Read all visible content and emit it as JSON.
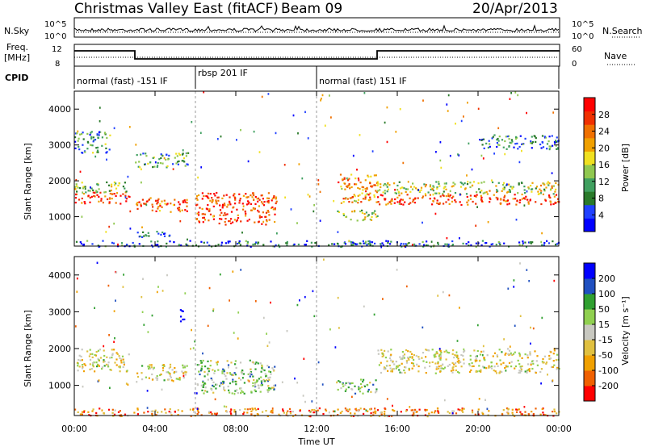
{
  "header": {
    "title": "Christmas Valley East (fitACF)",
    "beam": "Beam 09",
    "date": "20/Apr/2013"
  },
  "strips": {
    "nsky_label": "N.Sky",
    "nsearch_label": "N.Search",
    "noise_ticks": [
      "10^5",
      "10^0"
    ],
    "freq_label_1": "Freq.",
    "freq_label_2": "[MHz]",
    "freq_ticks": [
      "12",
      "8"
    ],
    "nave_label": "Nave",
    "nave_ticks": [
      "60",
      "0"
    ],
    "cpid_label": "CPID",
    "cpid_segments": [
      {
        "label": "normal (fast) -151 IF",
        "start_hour": 0,
        "end_hour": 6
      },
      {
        "label": "rbsp 201 IF",
        "start_hour": 6,
        "end_hour": 12
      },
      {
        "label": "normal (fast) 151 IF",
        "start_hour": 12,
        "end_hour": 24
      }
    ]
  },
  "chart_data": [
    {
      "type": "heatmap",
      "name": "power",
      "ylabel": "Slant Range [km]",
      "yticks": [
        1000,
        2000,
        3000,
        4000
      ],
      "ylim": [
        180,
        4500
      ],
      "xlim": [
        0,
        24
      ],
      "colorbar": {
        "label": "Power [dB]",
        "ticks": [
          "4",
          "8",
          "12",
          "16",
          "20",
          "24",
          "28"
        ],
        "colors": [
          "#0000ff",
          "#2040ff",
          "#2a7a2a",
          "#40a060",
          "#90c850",
          "#f0e020",
          "#f0a000",
          "#f07000",
          "#f03000",
          "#ff0000"
        ]
      },
      "scatter_bands": [
        {
          "t0": 0.0,
          "t1": 2.7,
          "r0": 1380,
          "r1": 1700,
          "level": 0.85
        },
        {
          "t0": 0.0,
          "t1": 2.7,
          "r0": 1700,
          "r1": 2000,
          "level": 0.45
        },
        {
          "t0": 0.0,
          "t1": 1.8,
          "r0": 2800,
          "r1": 3400,
          "level": 0.3
        },
        {
          "t0": 3.0,
          "t1": 5.6,
          "r0": 1150,
          "r1": 1550,
          "level": 0.8
        },
        {
          "t0": 3.0,
          "t1": 5.6,
          "r0": 2400,
          "r1": 2800,
          "level": 0.35
        },
        {
          "t0": 3.0,
          "t1": 5.0,
          "r0": 450,
          "r1": 620,
          "level": 0.25
        },
        {
          "t0": 6.0,
          "t1": 10.0,
          "r0": 800,
          "r1": 1700,
          "level": 0.85
        },
        {
          "t0": 13.0,
          "t1": 15.0,
          "r0": 1400,
          "r1": 2200,
          "level": 0.7
        },
        {
          "t0": 13.0,
          "t1": 15.0,
          "r0": 900,
          "r1": 1200,
          "level": 0.45
        },
        {
          "t0": 15.0,
          "t1": 24.0,
          "r0": 1350,
          "r1": 1650,
          "level": 0.85
        },
        {
          "t0": 15.0,
          "t1": 24.0,
          "r0": 1650,
          "r1": 2000,
          "level": 0.5
        },
        {
          "t0": 20.0,
          "t1": 24.0,
          "r0": 2900,
          "r1": 3300,
          "level": 0.25
        },
        {
          "t0": 0.0,
          "t1": 24.0,
          "r0": 180,
          "r1": 350,
          "level": 0.2
        }
      ]
    },
    {
      "type": "heatmap",
      "name": "velocity",
      "ylabel": "Slant Range [km]",
      "yticks": [
        1000,
        2000,
        3000,
        4000
      ],
      "ylim": [
        180,
        4500
      ],
      "xlim": [
        0,
        24
      ],
      "colorbar": {
        "label": "Velocity [m s⁻¹]",
        "ticks": [
          "-200",
          "-100",
          "-50",
          "-15",
          "15",
          "50",
          "100",
          "200"
        ],
        "colors": [
          "#ff0000",
          "#f06000",
          "#f0a000",
          "#e0c040",
          "#c8c8c0",
          "#90d050",
          "#30a030",
          "#2050c0",
          "#0000ff"
        ]
      },
      "scatter_bands": [
        {
          "t0": 0.0,
          "t1": 2.7,
          "r0": 1400,
          "r1": 2000,
          "level": 0.45
        },
        {
          "t0": 3.0,
          "t1": 5.6,
          "r0": 1150,
          "r1": 1600,
          "level": 0.45
        },
        {
          "t0": 5.2,
          "t1": 5.5,
          "r0": 2700,
          "r1": 3100,
          "level": 0.95
        },
        {
          "t0": 6.0,
          "t1": 10.0,
          "r0": 800,
          "r1": 1700,
          "level": 0.6
        },
        {
          "t0": 13.0,
          "t1": 15.0,
          "r0": 800,
          "r1": 1200,
          "level": 0.62
        },
        {
          "t0": 15.0,
          "t1": 24.0,
          "r0": 1350,
          "r1": 2000,
          "level": 0.45
        },
        {
          "t0": 0.0,
          "t1": 24.0,
          "r0": 180,
          "r1": 400,
          "level": 0.25
        }
      ]
    }
  ],
  "xaxis": {
    "label": "Time UT",
    "ticks": [
      "00:00",
      "04:00",
      "08:00",
      "12:00",
      "16:00",
      "20:00",
      "00:00"
    ]
  }
}
